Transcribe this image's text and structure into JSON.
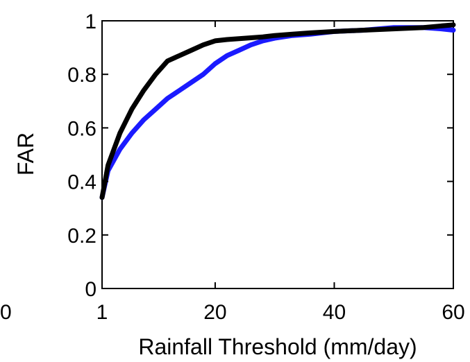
{
  "chart_data": {
    "type": "line",
    "title": "",
    "xlabel": "Rainfall Threshold (mm/day)",
    "ylabel": "FAR",
    "xlim": [
      1,
      60
    ],
    "ylim": [
      0,
      1
    ],
    "x_ticks": [
      1,
      20,
      40,
      60
    ],
    "x_tick_labels": [
      "1",
      "20",
      "40",
      "60"
    ],
    "y_ticks": [
      0,
      0.2,
      0.4,
      0.6,
      0.8,
      1
    ],
    "y_tick_labels": [
      "0",
      "0.2",
      "0.4",
      "0.6",
      "0.8",
      "1"
    ],
    "left_cut_label": "0",
    "grid": false,
    "series": [
      {
        "color": "#1a1aff",
        "x": [
          1,
          2,
          4,
          6,
          8,
          10,
          12,
          14,
          16,
          18,
          20,
          22,
          24,
          26,
          28,
          30,
          33,
          36,
          40,
          45,
          50,
          55,
          58,
          60
        ],
        "y": [
          0.34,
          0.44,
          0.52,
          0.58,
          0.63,
          0.67,
          0.71,
          0.74,
          0.77,
          0.8,
          0.84,
          0.87,
          0.89,
          0.91,
          0.925,
          0.935,
          0.945,
          0.95,
          0.96,
          0.965,
          0.975,
          0.975,
          0.97,
          0.965
        ]
      },
      {
        "color": "#000000",
        "x": [
          1,
          2,
          4,
          6,
          8,
          10,
          12,
          14,
          16,
          18,
          20,
          22,
          25,
          28,
          30,
          33,
          36,
          40,
          45,
          50,
          55,
          60
        ],
        "y": [
          0.34,
          0.46,
          0.58,
          0.67,
          0.74,
          0.8,
          0.85,
          0.87,
          0.89,
          0.91,
          0.925,
          0.93,
          0.935,
          0.94,
          0.945,
          0.95,
          0.955,
          0.96,
          0.965,
          0.97,
          0.975,
          0.985
        ]
      }
    ]
  }
}
